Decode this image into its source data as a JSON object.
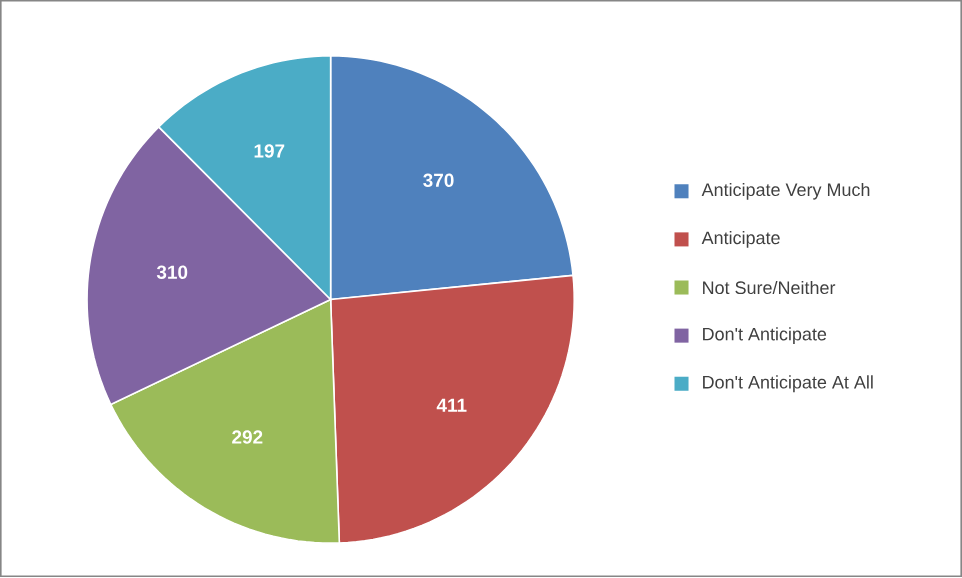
{
  "chart_data": {
    "type": "pie",
    "categories": [
      "Anticipate Very Much",
      "Anticipate",
      "Not Sure/Neither",
      "Don't Anticipate",
      "Don't Anticipate At All"
    ],
    "values": [
      370,
      411,
      292,
      310,
      197
    ],
    "colors": [
      "#4f81bd",
      "#c0504d",
      "#9bbb59",
      "#8064a2",
      "#4bacc6"
    ],
    "data_labels": true,
    "legend": "right"
  }
}
